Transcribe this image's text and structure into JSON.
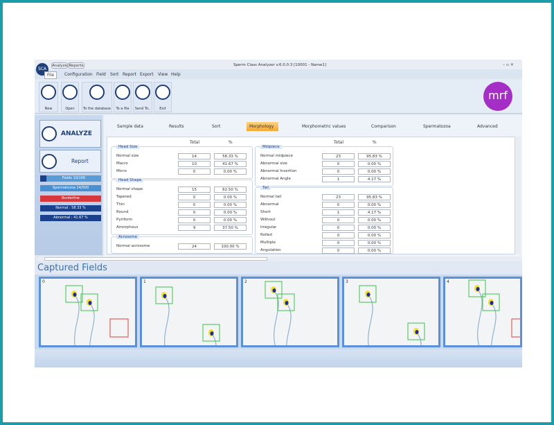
{
  "window": {
    "logo": "SCA",
    "tabs": [
      "Analyze",
      "Reports"
    ],
    "title": "Sperm Class Analyzer v.6.0.0.3  [10001 - Name1]"
  },
  "menu": [
    "File",
    "Configuration",
    "Field",
    "Sort",
    "Report",
    "Export",
    "View",
    "Help"
  ],
  "toolbar": [
    "New",
    "Open",
    "To the database",
    "To a file",
    "Send To..",
    "Exit"
  ],
  "brand": "mrf",
  "side": {
    "analyze": "ANALYZE",
    "report": "Report",
    "status": [
      "Fields 10/100",
      "Spermatozoa 24/500",
      "Borderline",
      "Normal : 58.33 %",
      "Abnormal : 41.67 %"
    ]
  },
  "tabs": [
    "Sample data",
    "Results",
    "Sort",
    "Morphology",
    "Morphometric values",
    "Comparison",
    "Spermatozoa",
    "Advanced"
  ],
  "columns": {
    "total": "Total",
    "percent": "%"
  },
  "groups": [
    {
      "title": "Head Size",
      "rows": [
        [
          "Normal size",
          14,
          "58.33 %"
        ],
        [
          "Macro",
          10,
          "41.67 %"
        ],
        [
          "Micro",
          0,
          "0.00 %"
        ]
      ]
    },
    {
      "title": "Head Shape",
      "rows": [
        [
          "Normal shape",
          15,
          "62.50 %"
        ],
        [
          "Tapered",
          0,
          "0.00 %"
        ],
        [
          "Thin",
          0,
          "0.00 %"
        ],
        [
          "Round",
          0,
          "0.00 %"
        ],
        [
          "Pyriform",
          0,
          "0.00 %"
        ],
        [
          "Amorphous",
          9,
          "37.50 %"
        ]
      ]
    },
    {
      "title": "Acrosome",
      "rows": [
        [
          "Normal acrosome",
          24,
          "100.00 %"
        ]
      ]
    },
    {
      "title": "Midpiece",
      "rows": [
        [
          "Normal midpiece",
          23,
          "95.83 %"
        ],
        [
          "Abnormal size",
          0,
          "0.00 %"
        ],
        [
          "Abnormal Insertion",
          0,
          "0.00 %"
        ],
        [
          "Abnormal Angle",
          1,
          "4.17 %"
        ]
      ]
    },
    {
      "title": "Tail",
      "rows": [
        [
          "Normal tail",
          23,
          "95.83 %"
        ],
        [
          "Abnormal",
          0,
          "0.00 %"
        ],
        [
          "Short",
          1,
          "4.17 %"
        ],
        [
          "Without",
          0,
          "0.00 %"
        ],
        [
          "Irregular",
          0,
          "0.00 %"
        ],
        [
          "Rolled",
          0,
          "0.00 %"
        ],
        [
          "Multiple",
          0,
          "0.00 %"
        ],
        [
          "Angulation",
          0,
          "0.00 %"
        ]
      ]
    }
  ],
  "captured": {
    "title": "Captured Fields",
    "fields": [
      0,
      1,
      2,
      3,
      4
    ]
  }
}
